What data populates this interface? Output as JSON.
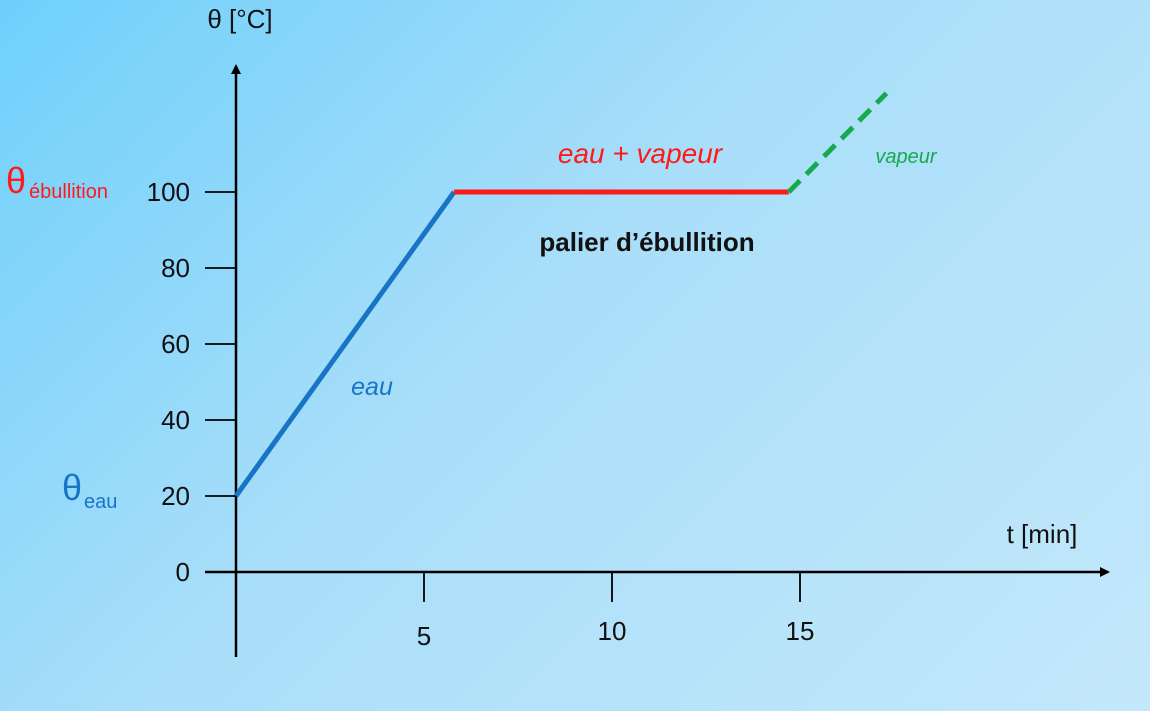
{
  "chart_data": {
    "type": "line",
    "xlabel": "t [min]",
    "ylabel": "θ [°C]",
    "xlim": [
      0,
      23.5
    ],
    "ylim": [
      -23,
      133
    ],
    "x_ticks": [
      5,
      10,
      15
    ],
    "y_ticks": [
      0,
      20,
      40,
      60,
      80,
      100
    ],
    "series": [
      {
        "name": "eau",
        "color": "#1874c4",
        "dash": false,
        "x": [
          0,
          5.8
        ],
        "y": [
          20,
          100
        ]
      },
      {
        "name": "eau + vapeur",
        "color": "#ff1a1a",
        "dash": false,
        "x": [
          5.8,
          14.7
        ],
        "y": [
          100,
          100
        ]
      },
      {
        "name": "vapeur",
        "color": "#17a94d",
        "dash": true,
        "x": [
          14.7,
          17.3
        ],
        "y": [
          100,
          126
        ]
      }
    ],
    "annotations": {
      "plateau": "palier d’ébullition",
      "theta_boil_symbol": "θ",
      "theta_boil_sub": "ébullition",
      "theta_boil_color": "#ff1a1a",
      "theta_water_symbol": "θ",
      "theta_water_sub": "eau",
      "theta_water_color": "#1874c4"
    }
  }
}
